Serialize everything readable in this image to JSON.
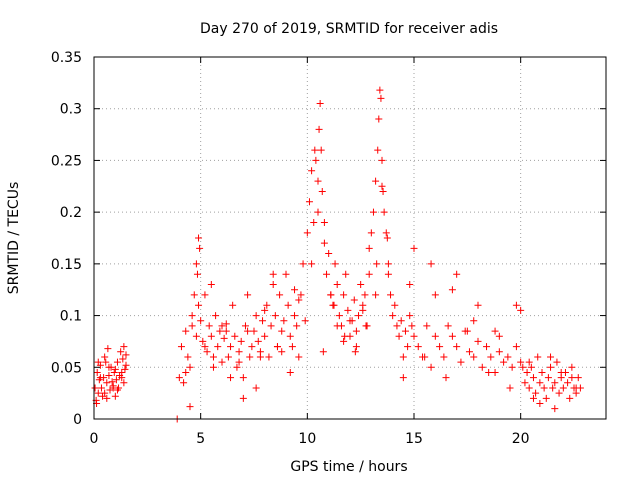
{
  "chart_data": {
    "type": "scatter",
    "title": "Day 270 of 2019, SRMTID for receiver adis",
    "xlabel": "GPS time / hours",
    "ylabel": "SRMTID / TECUs",
    "xlim": [
      0,
      24
    ],
    "ylim": [
      0,
      0.35
    ],
    "xticks": [
      0,
      5,
      10,
      15,
      20
    ],
    "xtick_labels": [
      "0",
      "5",
      "10",
      "15",
      "20"
    ],
    "yticks": [
      0,
      0.05,
      0.1,
      0.15,
      0.2,
      0.25,
      0.3,
      0.35
    ],
    "ytick_labels": [
      "0",
      "0.05",
      "0.1",
      "0.15",
      "0.2",
      "0.25",
      "0.3",
      "0.35"
    ],
    "grid": true,
    "marker": "+",
    "color": "#ff0000",
    "series": [
      {
        "name": "SRMTID",
        "x": [
          0.05,
          0.1,
          0.15,
          0.2,
          0.25,
          0.3,
          0.35,
          0.4,
          0.45,
          0.5,
          0.55,
          0.6,
          0.65,
          0.7,
          0.75,
          0.8,
          0.85,
          0.9,
          0.95,
          1.0,
          1.05,
          1.1,
          1.15,
          1.2,
          1.25,
          1.3,
          1.35,
          1.4,
          1.45,
          1.5,
          0.12,
          0.3,
          0.5,
          0.7,
          0.9,
          1.1,
          1.3,
          1.5,
          0.2,
          0.6,
          1.0,
          1.4,
          3.9,
          4.0,
          4.1,
          4.2,
          4.3,
          4.4,
          4.5,
          4.6,
          4.7,
          4.8,
          4.85,
          4.9,
          4.95,
          5.0,
          5.1,
          5.2,
          5.3,
          5.4,
          5.5,
          5.6,
          5.7,
          5.8,
          5.9,
          6.0,
          6.1,
          6.2,
          6.3,
          6.4,
          6.5,
          6.6,
          6.7,
          6.8,
          6.9,
          7.0,
          7.1,
          7.2,
          7.3,
          7.4,
          7.5,
          7.6,
          7.7,
          7.8,
          7.9,
          8.0,
          8.1,
          8.2,
          8.3,
          8.4,
          8.5,
          8.6,
          8.7,
          8.8,
          8.9,
          9.0,
          9.1,
          9.2,
          9.3,
          9.4,
          9.5,
          9.6,
          9.7,
          9.8,
          9.9,
          4.3,
          4.6,
          4.9,
          5.2,
          5.6,
          6.0,
          6.4,
          6.8,
          7.2,
          7.6,
          8.0,
          8.4,
          8.8,
          9.2,
          9.6,
          4.5,
          4.8,
          5.5,
          6.2,
          7.0,
          7.8,
          8.6,
          9.4,
          10.0,
          10.1,
          10.2,
          10.3,
          10.4,
          10.5,
          10.55,
          10.6,
          10.65,
          10.7,
          10.8,
          10.9,
          11.0,
          11.1,
          11.2,
          11.3,
          11.4,
          11.5,
          11.6,
          11.7,
          11.8,
          11.9,
          12.0,
          12.1,
          12.2,
          12.3,
          12.4,
          12.5,
          12.6,
          12.7,
          12.8,
          12.9,
          13.0,
          13.1,
          13.2,
          13.3,
          13.35,
          13.4,
          13.45,
          13.5,
          13.55,
          13.6,
          13.7,
          13.8,
          13.9,
          14.0,
          10.2,
          10.5,
          10.8,
          11.1,
          11.4,
          11.7,
          12.0,
          12.3,
          12.6,
          12.9,
          13.2,
          13.5,
          13.8,
          10.35,
          10.75,
          11.25,
          11.75,
          12.25,
          12.75,
          13.25,
          13.75,
          14.1,
          14.2,
          14.3,
          14.4,
          14.5,
          14.6,
          14.7,
          14.8,
          14.9,
          15.0,
          15.2,
          15.4,
          15.6,
          15.8,
          16.0,
          16.2,
          16.4,
          16.6,
          16.8,
          17.0,
          17.2,
          17.4,
          17.6,
          17.8,
          18.0,
          18.2,
          18.4,
          18.6,
          18.8,
          19.0,
          19.2,
          19.4,
          19.6,
          19.8,
          20.0,
          14.5,
          15.0,
          15.5,
          16.0,
          16.5,
          17.0,
          17.5,
          18.0,
          18.5,
          19.0,
          19.5,
          20.0,
          14.8,
          15.8,
          16.8,
          17.8,
          18.8,
          19.8,
          20.1,
          20.2,
          20.3,
          20.4,
          20.5,
          20.6,
          20.7,
          20.8,
          20.9,
          21.0,
          21.1,
          21.2,
          21.3,
          21.4,
          21.5,
          21.6,
          21.7,
          21.8,
          21.9,
          22.0,
          22.1,
          22.2,
          22.3,
          22.4,
          22.5,
          22.6,
          22.7,
          22.8,
          20.4,
          20.9,
          21.4,
          21.9,
          22.4,
          20.6,
          21.6,
          22.6
        ],
        "y": [
          0.03,
          0.018,
          0.045,
          0.025,
          0.038,
          0.052,
          0.03,
          0.022,
          0.04,
          0.06,
          0.055,
          0.035,
          0.068,
          0.042,
          0.028,
          0.05,
          0.036,
          0.03,
          0.045,
          0.022,
          0.038,
          0.055,
          0.03,
          0.042,
          0.065,
          0.04,
          0.058,
          0.035,
          0.048,
          0.062,
          0.015,
          0.04,
          0.025,
          0.05,
          0.032,
          0.028,
          0.045,
          0.052,
          0.055,
          0.02,
          0.048,
          0.07,
          0.0,
          0.04,
          0.07,
          0.035,
          0.085,
          0.06,
          0.05,
          0.09,
          0.12,
          0.08,
          0.14,
          0.11,
          0.165,
          0.095,
          0.075,
          0.12,
          0.065,
          0.09,
          0.08,
          0.06,
          0.1,
          0.07,
          0.085,
          0.055,
          0.078,
          0.092,
          0.06,
          0.07,
          0.11,
          0.08,
          0.05,
          0.065,
          0.075,
          0.04,
          0.09,
          0.12,
          0.06,
          0.07,
          0.085,
          0.1,
          0.075,
          0.065,
          0.095,
          0.08,
          0.11,
          0.06,
          0.09,
          0.13,
          0.1,
          0.07,
          0.12,
          0.085,
          0.095,
          0.14,
          0.11,
          0.08,
          0.07,
          0.1,
          0.09,
          0.06,
          0.12,
          0.15,
          0.095,
          0.045,
          0.1,
          0.175,
          0.07,
          0.05,
          0.09,
          0.04,
          0.055,
          0.085,
          0.03,
          0.105,
          0.14,
          0.065,
          0.045,
          0.115,
          0.012,
          0.15,
          0.13,
          0.085,
          0.02,
          0.06,
          0.07,
          0.125,
          0.18,
          0.21,
          0.15,
          0.19,
          0.25,
          0.23,
          0.28,
          0.305,
          0.26,
          0.22,
          0.17,
          0.14,
          0.16,
          0.12,
          0.11,
          0.15,
          0.13,
          0.1,
          0.09,
          0.12,
          0.14,
          0.105,
          0.08,
          0.095,
          0.115,
          0.085,
          0.1,
          0.13,
          0.11,
          0.12,
          0.09,
          0.14,
          0.18,
          0.2,
          0.23,
          0.26,
          0.29,
          0.318,
          0.31,
          0.25,
          0.22,
          0.2,
          0.18,
          0.15,
          0.12,
          0.1,
          0.24,
          0.2,
          0.19,
          0.12,
          0.09,
          0.075,
          0.095,
          0.07,
          0.105,
          0.165,
          0.12,
          0.225,
          0.14,
          0.26,
          0.065,
          0.11,
          0.08,
          0.065,
          0.09,
          0.15,
          0.175,
          0.11,
          0.09,
          0.08,
          0.095,
          0.06,
          0.085,
          0.07,
          0.1,
          0.09,
          0.08,
          0.07,
          0.06,
          0.09,
          0.05,
          0.08,
          0.07,
          0.06,
          0.09,
          0.08,
          0.07,
          0.055,
          0.085,
          0.065,
          0.06,
          0.075,
          0.05,
          0.07,
          0.06,
          0.045,
          0.065,
          0.055,
          0.06,
          0.05,
          0.07,
          0.055,
          0.04,
          0.165,
          0.06,
          0.12,
          0.04,
          0.14,
          0.085,
          0.11,
          0.045,
          0.08,
          0.03,
          0.105,
          0.13,
          0.15,
          0.125,
          0.095,
          0.085,
          0.11,
          0.05,
          0.035,
          0.045,
          0.03,
          0.05,
          0.04,
          0.025,
          0.06,
          0.035,
          0.045,
          0.03,
          0.02,
          0.04,
          0.05,
          0.03,
          0.035,
          0.055,
          0.025,
          0.04,
          0.03,
          0.045,
          0.035,
          0.02,
          0.04,
          0.03,
          0.025,
          0.04,
          0.03,
          0.055,
          0.015,
          0.06,
          0.045,
          0.05,
          0.02,
          0.01,
          0.03
        ]
      }
    ]
  }
}
